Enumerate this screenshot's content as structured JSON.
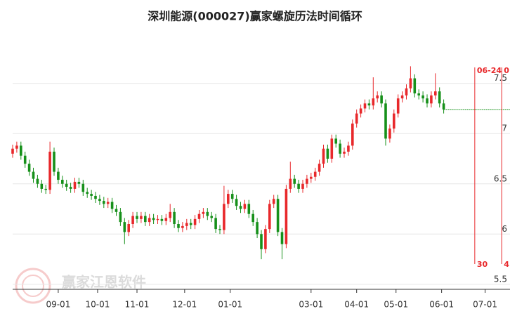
{
  "chart_data": {
    "type": "candlestick",
    "title": "深圳能源(000027)赢家螺旋历法时间循环",
    "watermark": "赢家江恩软件",
    "xlim": [
      0,
      240
    ],
    "ylim": [
      5.45,
      8.05
    ],
    "yticks": [
      5.5,
      6,
      6.5,
      7,
      7.5
    ],
    "xticks": [
      {
        "value": 22,
        "label": "09-01"
      },
      {
        "value": 41,
        "label": "10-01"
      },
      {
        "value": 60,
        "label": "11-01"
      },
      {
        "value": 83,
        "label": "12-01"
      },
      {
        "value": 105,
        "label": "01-01"
      },
      {
        "value": 144,
        "label": "03-01"
      },
      {
        "value": 166,
        "label": "04-01"
      },
      {
        "value": 185,
        "label": "05-01"
      },
      {
        "value": 207,
        "label": "06-01"
      },
      {
        "value": 228,
        "label": "07-01"
      }
    ],
    "grid": true,
    "up_color": "#e8282b",
    "down_color": "#16901a",
    "x": [
      0,
      2,
      4,
      6,
      8,
      10,
      12,
      14,
      16,
      18,
      20,
      22,
      24,
      26,
      28,
      30,
      32,
      34,
      36,
      38,
      40,
      42,
      44,
      46,
      48,
      50,
      52,
      54,
      56,
      58,
      60,
      62,
      64,
      66,
      68,
      70,
      72,
      74,
      76,
      78,
      80,
      82,
      84,
      86,
      88,
      90,
      92,
      94,
      96,
      98,
      100,
      102,
      104,
      106,
      108,
      110,
      112,
      114,
      116,
      118,
      120,
      122,
      124,
      126,
      128,
      130,
      132,
      134,
      136,
      138,
      140,
      142,
      144,
      146,
      148,
      150,
      152,
      154,
      156,
      158,
      160,
      162,
      164,
      166,
      168,
      170,
      172,
      174,
      176,
      178,
      180,
      182,
      184,
      186,
      188,
      190,
      192,
      194,
      196,
      198,
      200,
      202,
      204,
      206,
      208
    ],
    "open": [
      6.8,
      6.85,
      6.88,
      6.78,
      6.7,
      6.62,
      6.55,
      6.5,
      6.45,
      6.44,
      6.82,
      6.62,
      6.54,
      6.5,
      6.47,
      6.45,
      6.52,
      6.5,
      6.42,
      6.4,
      6.38,
      6.35,
      6.33,
      6.3,
      6.32,
      6.25,
      6.22,
      6.12,
      6.02,
      6.1,
      6.18,
      6.15,
      6.18,
      6.12,
      6.16,
      6.14,
      6.15,
      6.13,
      6.16,
      6.22,
      6.1,
      6.06,
      6.08,
      6.11,
      6.09,
      6.15,
      6.2,
      6.22,
      6.18,
      6.16,
      6.05,
      6.04,
      6.3,
      6.4,
      6.35,
      6.28,
      6.25,
      6.3,
      6.2,
      6.12,
      6.0,
      5.85,
      6.05,
      6.3,
      6.35,
      6.02,
      5.9,
      6.45,
      6.55,
      6.5,
      6.45,
      6.5,
      6.55,
      6.57,
      6.62,
      6.7,
      6.85,
      6.75,
      6.95,
      6.9,
      6.8,
      6.82,
      6.88,
      7.1,
      7.2,
      7.25,
      7.3,
      7.28,
      7.35,
      7.38,
      7.3,
      6.95,
      7.05,
      7.2,
      7.35,
      7.38,
      7.45,
      7.55,
      7.4,
      7.38,
      7.35,
      7.3,
      7.38,
      7.42,
      7.3
    ],
    "high": [
      6.89,
      6.92,
      6.92,
      6.82,
      6.74,
      6.66,
      6.59,
      6.54,
      6.49,
      6.92,
      6.86,
      6.66,
      6.58,
      6.54,
      6.51,
      6.56,
      6.56,
      6.54,
      6.46,
      6.44,
      6.42,
      6.39,
      6.37,
      6.36,
      6.36,
      6.29,
      6.26,
      6.16,
      6.14,
      6.22,
      6.22,
      6.22,
      6.22,
      6.2,
      6.2,
      6.19,
      6.19,
      6.2,
      6.3,
      6.26,
      6.14,
      6.12,
      6.15,
      6.15,
      6.19,
      6.24,
      6.26,
      6.26,
      6.22,
      6.2,
      6.09,
      6.48,
      6.44,
      6.44,
      6.39,
      6.32,
      6.34,
      6.34,
      6.24,
      6.16,
      6.04,
      6.09,
      6.34,
      6.39,
      6.39,
      6.06,
      6.49,
      6.72,
      6.59,
      6.54,
      6.54,
      6.59,
      6.61,
      6.66,
      6.74,
      6.89,
      6.89,
      6.99,
      6.99,
      6.94,
      6.86,
      6.92,
      7.14,
      7.24,
      7.29,
      7.34,
      7.34,
      7.56,
      7.42,
      7.42,
      7.34,
      7.09,
      7.24,
      7.39,
      7.42,
      7.49,
      7.67,
      7.59,
      7.44,
      7.42,
      7.39,
      7.42,
      7.6,
      7.46,
      7.34
    ],
    "low": [
      6.76,
      6.81,
      6.74,
      6.66,
      6.58,
      6.51,
      6.46,
      6.41,
      6.4,
      6.4,
      6.58,
      6.5,
      6.46,
      6.43,
      6.41,
      6.41,
      6.46,
      6.38,
      6.36,
      6.34,
      6.31,
      6.29,
      6.26,
      6.26,
      6.21,
      6.18,
      6.08,
      5.9,
      5.98,
      6.06,
      6.11,
      6.11,
      6.08,
      6.08,
      6.1,
      6.1,
      6.09,
      6.09,
      6.12,
      6.06,
      6.02,
      6.02,
      6.04,
      6.05,
      6.05,
      6.11,
      6.16,
      6.14,
      6.12,
      6.01,
      6.0,
      6.0,
      6.26,
      6.31,
      6.24,
      6.21,
      6.21,
      6.16,
      6.08,
      5.96,
      5.75,
      5.81,
      6.01,
      6.26,
      5.98,
      5.75,
      5.86,
      6.41,
      6.46,
      6.41,
      6.41,
      6.46,
      6.51,
      6.53,
      6.58,
      6.66,
      6.71,
      6.71,
      6.86,
      6.76,
      6.76,
      6.78,
      6.84,
      7.06,
      7.16,
      7.21,
      7.24,
      7.24,
      7.31,
      7.26,
      6.88,
      6.91,
      7.01,
      7.16,
      7.31,
      7.34,
      7.41,
      7.36,
      7.34,
      7.31,
      7.26,
      7.26,
      7.34,
      7.26,
      7.2
    ],
    "close": [
      6.85,
      6.88,
      6.78,
      6.7,
      6.62,
      6.55,
      6.5,
      6.45,
      6.44,
      6.82,
      6.62,
      6.54,
      6.5,
      6.47,
      6.45,
      6.52,
      6.5,
      6.42,
      6.4,
      6.38,
      6.35,
      6.33,
      6.3,
      6.32,
      6.25,
      6.22,
      6.12,
      6.02,
      6.1,
      6.18,
      6.15,
      6.18,
      6.12,
      6.16,
      6.14,
      6.15,
      6.13,
      6.16,
      6.22,
      6.1,
      6.06,
      6.08,
      6.11,
      6.09,
      6.15,
      6.2,
      6.22,
      6.18,
      6.16,
      6.05,
      6.04,
      6.3,
      6.4,
      6.35,
      6.28,
      6.25,
      6.3,
      6.2,
      6.12,
      6.0,
      5.85,
      6.05,
      6.3,
      6.35,
      6.02,
      5.9,
      6.45,
      6.55,
      6.5,
      6.45,
      6.5,
      6.55,
      6.57,
      6.62,
      6.7,
      6.85,
      6.75,
      6.95,
      6.9,
      6.8,
      6.82,
      6.88,
      7.1,
      7.2,
      7.25,
      7.3,
      7.28,
      7.35,
      7.38,
      7.3,
      6.95,
      7.05,
      7.2,
      7.35,
      7.38,
      7.45,
      7.55,
      7.4,
      7.38,
      7.35,
      7.3,
      7.38,
      7.42,
      7.3,
      7.24
    ],
    "cycle_lines": [
      {
        "x": 223,
        "top_label": "06-24",
        "bottom_label": "30"
      },
      {
        "x": 236,
        "top_label": "0",
        "bottom_label": "4"
      }
    ],
    "cycle_color": "#e8282b"
  }
}
